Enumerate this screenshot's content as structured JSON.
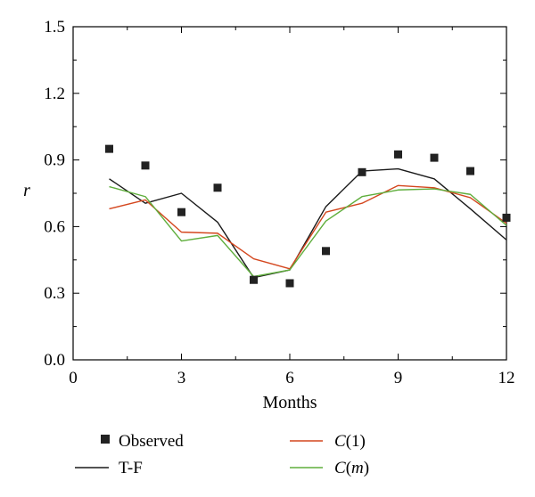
{
  "chart_data": {
    "type": "line",
    "xlabel": "Months",
    "ylabel": "r",
    "xlim": [
      0,
      12
    ],
    "ylim": [
      0.0,
      1.5
    ],
    "xticks": [
      0,
      3,
      6,
      9,
      12
    ],
    "xtick_labels": [
      "0",
      "3",
      "6",
      "9",
      "12"
    ],
    "yticks": [
      0.0,
      0.3,
      0.6,
      0.9,
      1.2,
      1.5
    ],
    "ytick_labels": [
      "0.0",
      "0.3",
      "0.6",
      "0.9",
      "1.2",
      "1.5"
    ],
    "grid": false,
    "legend_position": "bottom",
    "x": [
      1,
      2,
      3,
      4,
      5,
      6,
      7,
      8,
      9,
      10,
      11,
      12
    ],
    "series": [
      {
        "name": "Observed",
        "style": "markers",
        "color": "#222222",
        "values": [
          0.95,
          0.875,
          0.665,
          0.775,
          0.36,
          0.345,
          0.49,
          0.845,
          0.925,
          0.91,
          0.85,
          0.64
        ]
      },
      {
        "name": "T-F",
        "style": "line",
        "color": "#1a1a1a",
        "values": [
          0.815,
          0.705,
          0.75,
          0.62,
          0.37,
          0.405,
          0.69,
          0.85,
          0.86,
          0.815,
          0.68,
          0.54
        ]
      },
      {
        "name": "C(1)",
        "name_main": "C",
        "name_suffix": "(1)",
        "style": "line",
        "color": "#d4471f",
        "values": [
          0.68,
          0.72,
          0.575,
          0.57,
          0.455,
          0.41,
          0.665,
          0.705,
          0.785,
          0.775,
          0.73,
          0.615
        ]
      },
      {
        "name": "C(m)",
        "name_main": "C",
        "name_open": "(",
        "name_arg": "m",
        "name_close": ")",
        "style": "line",
        "color": "#5fae3c",
        "values": [
          0.78,
          0.735,
          0.535,
          0.56,
          0.375,
          0.405,
          0.625,
          0.735,
          0.765,
          0.77,
          0.745,
          0.605
        ]
      }
    ]
  }
}
